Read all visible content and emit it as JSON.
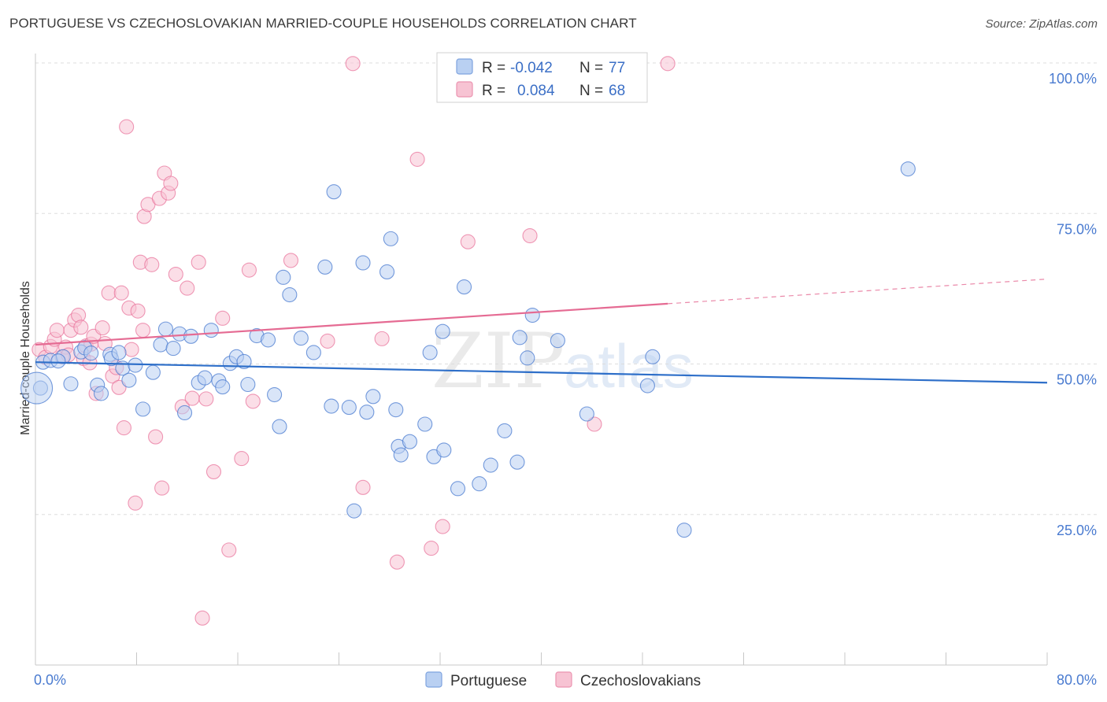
{
  "header": {
    "title": "PORTUGUESE VS CZECHOSLOVAKIAN MARRIED-COUPLE HOUSEHOLDS CORRELATION CHART",
    "source": "Source: ZipAtlas.com"
  },
  "colors": {
    "blue": "#4a7bd0",
    "blue_fill": "#b9d0f2",
    "blue_line": "#2e6fc9",
    "pink": "#e86f98",
    "pink_fill": "#f7c3d3",
    "pink_line": "#e56b93",
    "grid": "#dddddd"
  },
  "legend_box": {
    "rows": [
      {
        "r_label": "R =",
        "r_value": "-0.042",
        "n_label": "N =",
        "n_value": "77",
        "series": "blue"
      },
      {
        "r_label": "R =",
        "r_value": "0.084",
        "n_label": "N =",
        "n_value": "68",
        "series": "pink"
      }
    ]
  },
  "bottom_legend": {
    "items": [
      {
        "label": "Portuguese",
        "series": "blue"
      },
      {
        "label": "Czechoslovakians",
        "series": "pink"
      }
    ]
  },
  "watermark": {
    "zip": "ZIP",
    "atlas": "atlas"
  },
  "chart_data": {
    "type": "scatter",
    "title": "PORTUGUESE VS CZECHOSLOVAKIAN MARRIED-COUPLE HOUSEHOLDS CORRELATION CHART",
    "xlabel": "",
    "ylabel": "Married-couple Households",
    "xlim": [
      0,
      80
    ],
    "ylim": [
      0,
      100
    ],
    "x_tick_labels": [
      "0.0%",
      "80.0%"
    ],
    "y_tick_labels": [
      "100.0%",
      "75.0%",
      "50.0%",
      "25.0%"
    ],
    "y_ticks": [
      100,
      75,
      50,
      25
    ],
    "grid": true,
    "legend_position": "top-center",
    "series": [
      {
        "name": "Portuguese",
        "color": "#4a7bd0",
        "R": -0.042,
        "N": 77,
        "trend": {
          "x": [
            0,
            80
          ],
          "y": [
            50.3,
            46.9
          ],
          "dashed_from": null
        },
        "points": [
          [
            0.4,
            46
          ],
          [
            0.6,
            50.3
          ],
          [
            1.2,
            50.6
          ],
          [
            2.2,
            51.2
          ],
          [
            2.8,
            46.7
          ],
          [
            3.6,
            52
          ],
          [
            3.9,
            52.7
          ],
          [
            4.9,
            46.5
          ],
          [
            5.2,
            45.1
          ],
          [
            5.9,
            51.6
          ],
          [
            6,
            50.9
          ],
          [
            6.6,
            51.9
          ],
          [
            6.9,
            49.3
          ],
          [
            7.4,
            47.3
          ],
          [
            7.9,
            49.8
          ],
          [
            8.5,
            42.5
          ],
          [
            9.3,
            48.6
          ],
          [
            9.9,
            53.2
          ],
          [
            10.3,
            55.8
          ],
          [
            10.9,
            52.6
          ],
          [
            11.4,
            55
          ],
          [
            11.8,
            41.9
          ],
          [
            12.3,
            54.6
          ],
          [
            12.9,
            46.9
          ],
          [
            13.4,
            47.7
          ],
          [
            13.9,
            55.6
          ],
          [
            14.5,
            47.2
          ],
          [
            14.8,
            46.2
          ],
          [
            15.4,
            50.1
          ],
          [
            15.9,
            51.2
          ],
          [
            16.5,
            50.4
          ],
          [
            16.8,
            46.6
          ],
          [
            17.5,
            54.7
          ],
          [
            18.4,
            54
          ],
          [
            18.9,
            44.9
          ],
          [
            19.3,
            39.6
          ],
          [
            19.6,
            64.4
          ],
          [
            20.1,
            61.5
          ],
          [
            21,
            54.3
          ],
          [
            22,
            51.9
          ],
          [
            22.9,
            66.1
          ],
          [
            23.4,
            43
          ],
          [
            23.6,
            78.6
          ],
          [
            24.8,
            42.8
          ],
          [
            25.2,
            25.6
          ],
          [
            25.9,
            66.8
          ],
          [
            26.2,
            42
          ],
          [
            26.7,
            44.6
          ],
          [
            27.8,
            65.3
          ],
          [
            28.1,
            70.8
          ],
          [
            28.5,
            42.4
          ],
          [
            28.7,
            36.3
          ],
          [
            28.9,
            34.9
          ],
          [
            29.6,
            37.1
          ],
          [
            30.8,
            40
          ],
          [
            31.2,
            51.9
          ],
          [
            31.5,
            34.6
          ],
          [
            32.2,
            55.4
          ],
          [
            32.3,
            35.7
          ],
          [
            33.4,
            29.3
          ],
          [
            33.9,
            62.8
          ],
          [
            35.1,
            30.1
          ],
          [
            36,
            33.2
          ],
          [
            37.1,
            38.9
          ],
          [
            38.1,
            33.7
          ],
          [
            38.3,
            54.4
          ],
          [
            38.9,
            51
          ],
          [
            39.3,
            58.1
          ],
          [
            41.3,
            53.9
          ],
          [
            43.6,
            41.7
          ],
          [
            48.4,
            46.4
          ],
          [
            48.8,
            51.2
          ],
          [
            51.3,
            22.4
          ],
          [
            69,
            82.4
          ],
          [
            0.1,
            46
          ],
          [
            1.8,
            50.5
          ],
          [
            4.4,
            51.8
          ]
        ]
      },
      {
        "name": "Czechoslovakians",
        "color": "#e86f98",
        "R": 0.084,
        "N": 68,
        "trend": {
          "x": [
            0,
            80
          ],
          "y": [
            53.2,
            64.1
          ],
          "dashed_from": 50
        },
        "points": [
          [
            0.3,
            52.4
          ],
          [
            0.8,
            51.1
          ],
          [
            1.2,
            52.9
          ],
          [
            1.5,
            54.1
          ],
          [
            1.7,
            55.6
          ],
          [
            2.1,
            51.2
          ],
          [
            2.4,
            52.8
          ],
          [
            2.8,
            55.6
          ],
          [
            3.1,
            57.3
          ],
          [
            3.4,
            58.1
          ],
          [
            3.6,
            56.1
          ],
          [
            3.8,
            50.9
          ],
          [
            4,
            53
          ],
          [
            4.3,
            50.2
          ],
          [
            4.4,
            53.3
          ],
          [
            4.6,
            54.6
          ],
          [
            4.8,
            45.1
          ],
          [
            5.3,
            56
          ],
          [
            5.5,
            53.4
          ],
          [
            5.8,
            61.8
          ],
          [
            6.1,
            48
          ],
          [
            6.4,
            49.4
          ],
          [
            6.6,
            46.1
          ],
          [
            6.8,
            61.8
          ],
          [
            7,
            39.4
          ],
          [
            7.2,
            89.4
          ],
          [
            7.4,
            59.3
          ],
          [
            7.6,
            52.4
          ],
          [
            7.9,
            26.9
          ],
          [
            8.1,
            58.8
          ],
          [
            8.3,
            66.9
          ],
          [
            8.5,
            55.6
          ],
          [
            8.6,
            74.5
          ],
          [
            8.9,
            76.5
          ],
          [
            9.2,
            66.5
          ],
          [
            9.5,
            37.9
          ],
          [
            9.8,
            77.5
          ],
          [
            10,
            29.4
          ],
          [
            10.2,
            81.7
          ],
          [
            10.5,
            78.4
          ],
          [
            10.7,
            80
          ],
          [
            11.1,
            64.9
          ],
          [
            11.6,
            42.9
          ],
          [
            12,
            62.6
          ],
          [
            12.4,
            44.3
          ],
          [
            12.9,
            66.9
          ],
          [
            13.2,
            7.8
          ],
          [
            13.5,
            44.2
          ],
          [
            14.1,
            32.1
          ],
          [
            14.8,
            57.6
          ],
          [
            15.3,
            19.1
          ],
          [
            16.3,
            34.3
          ],
          [
            16.9,
            65.6
          ],
          [
            17.2,
            43.8
          ],
          [
            20.2,
            67.2
          ],
          [
            23.1,
            53.8
          ],
          [
            25.1,
            99.9
          ],
          [
            25.9,
            29.5
          ],
          [
            27.4,
            54.2
          ],
          [
            28.6,
            17.1
          ],
          [
            30.2,
            84
          ],
          [
            31.3,
            19.4
          ],
          [
            32.2,
            23
          ],
          [
            34.2,
            70.3
          ],
          [
            39.1,
            71.3
          ],
          [
            44.2,
            40
          ],
          [
            50,
            99.9
          ],
          [
            2.6,
            51.5
          ]
        ]
      }
    ]
  }
}
